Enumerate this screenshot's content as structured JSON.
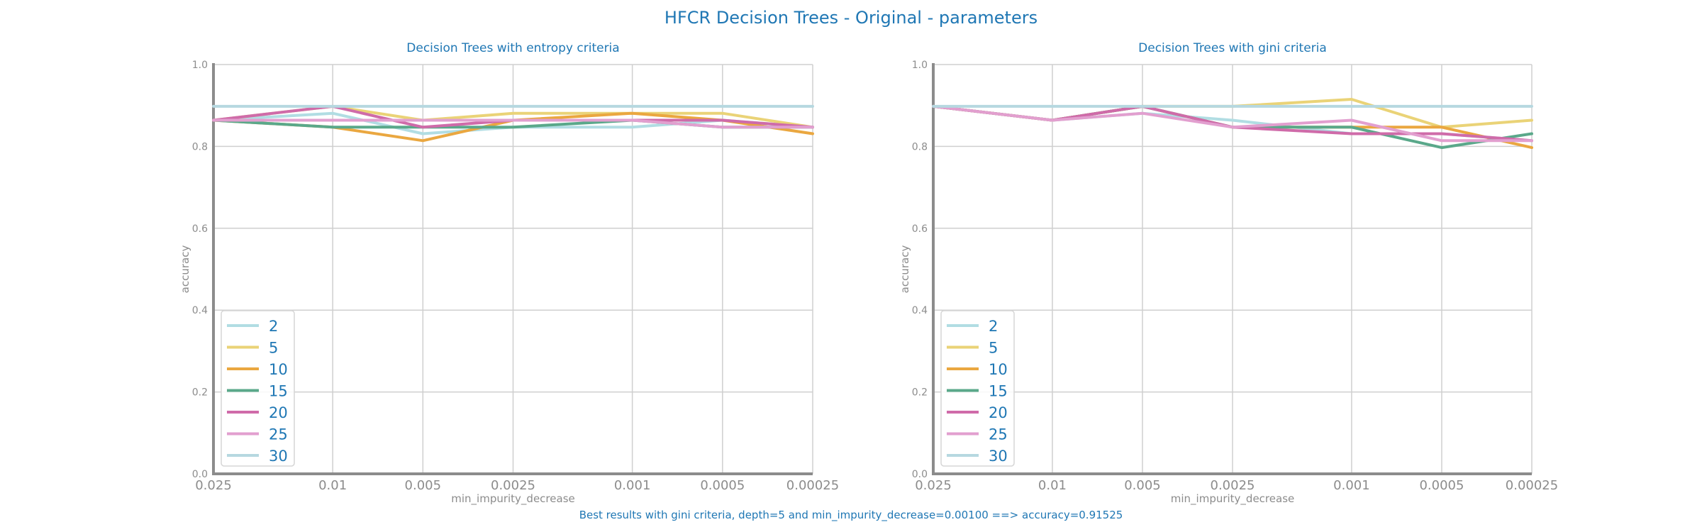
{
  "suptitle": "HFCR Decision Trees - Original - parameters",
  "caption": "Best results with gini criteria, depth=5 and min_impurity_decrease=0.00100 ==> accuracy=0.91525",
  "colors": {
    "2": "#b1dde3",
    "5": "#ead377",
    "10": "#eaa740",
    "15": "#5aa88a",
    "20": "#cf6ba9",
    "25": "#e29fcf",
    "30": "#b6d8e0"
  },
  "chart_data": [
    {
      "type": "line",
      "title": "Decision Trees with entropy criteria",
      "xlabel": "min_impurity_decrease",
      "ylabel": "accuracy",
      "ylim": [
        0,
        1
      ],
      "yticks": [
        "0.0",
        "0.2",
        "0.4",
        "0.6",
        "0.8",
        "1.0"
      ],
      "x": [
        0.025,
        0.01,
        0.005,
        0.0025,
        0.001,
        0.0005,
        0.00025
      ],
      "xticks": [
        "0.025",
        "0.01",
        "0.005",
        "0.0025",
        "0.001",
        "0.0005",
        "0.00025"
      ],
      "grid": true,
      "legend": "lower-left",
      "series": [
        {
          "name": "2",
          "values": [
            0.864,
            0.881,
            0.831,
            0.847,
            0.847,
            0.864,
            0.847
          ]
        },
        {
          "name": "5",
          "values": [
            0.864,
            0.898,
            0.864,
            0.881,
            0.881,
            0.881,
            0.847
          ]
        },
        {
          "name": "10",
          "values": [
            0.864,
            0.847,
            0.814,
            0.864,
            0.881,
            0.864,
            0.831
          ]
        },
        {
          "name": "15",
          "values": [
            0.864,
            0.847,
            0.847,
            0.847,
            0.864,
            0.847,
            0.847
          ]
        },
        {
          "name": "20",
          "values": [
            0.864,
            0.898,
            0.847,
            0.864,
            0.864,
            0.864,
            0.847
          ]
        },
        {
          "name": "25",
          "values": [
            0.864,
            0.864,
            0.864,
            0.864,
            0.864,
            0.847,
            0.847
          ]
        },
        {
          "name": "30",
          "values": [
            0.898,
            0.898,
            0.898,
            0.898,
            0.898,
            0.898,
            0.898
          ]
        }
      ]
    },
    {
      "type": "line",
      "title": "Decision Trees with gini criteria",
      "xlabel": "min_impurity_decrease",
      "ylabel": "accuracy",
      "ylim": [
        0,
        1
      ],
      "yticks": [
        "0.0",
        "0.2",
        "0.4",
        "0.6",
        "0.8",
        "1.0"
      ],
      "x": [
        0.025,
        0.01,
        0.005,
        0.0025,
        0.001,
        0.0005,
        0.00025
      ],
      "xticks": [
        "0.025",
        "0.01",
        "0.005",
        "0.0025",
        "0.001",
        "0.0005",
        "0.00025"
      ],
      "grid": true,
      "legend": "lower-left",
      "series": [
        {
          "name": "2",
          "values": [
            0.898,
            0.864,
            0.881,
            0.864,
            0.831,
            0.831,
            0.814
          ]
        },
        {
          "name": "5",
          "values": [
            0.898,
            0.864,
            0.898,
            0.898,
            0.915,
            0.847,
            0.864
          ]
        },
        {
          "name": "10",
          "values": [
            0.898,
            0.864,
            0.898,
            0.847,
            0.847,
            0.847,
            0.797
          ]
        },
        {
          "name": "15",
          "values": [
            0.898,
            0.864,
            0.898,
            0.847,
            0.847,
            0.797,
            0.831
          ]
        },
        {
          "name": "20",
          "values": [
            0.898,
            0.864,
            0.898,
            0.847,
            0.831,
            0.831,
            0.814
          ]
        },
        {
          "name": "25",
          "values": [
            0.898,
            0.864,
            0.881,
            0.847,
            0.864,
            0.814,
            0.814
          ]
        },
        {
          "name": "30",
          "values": [
            0.898,
            0.898,
            0.898,
            0.898,
            0.898,
            0.898,
            0.898
          ]
        }
      ]
    }
  ]
}
